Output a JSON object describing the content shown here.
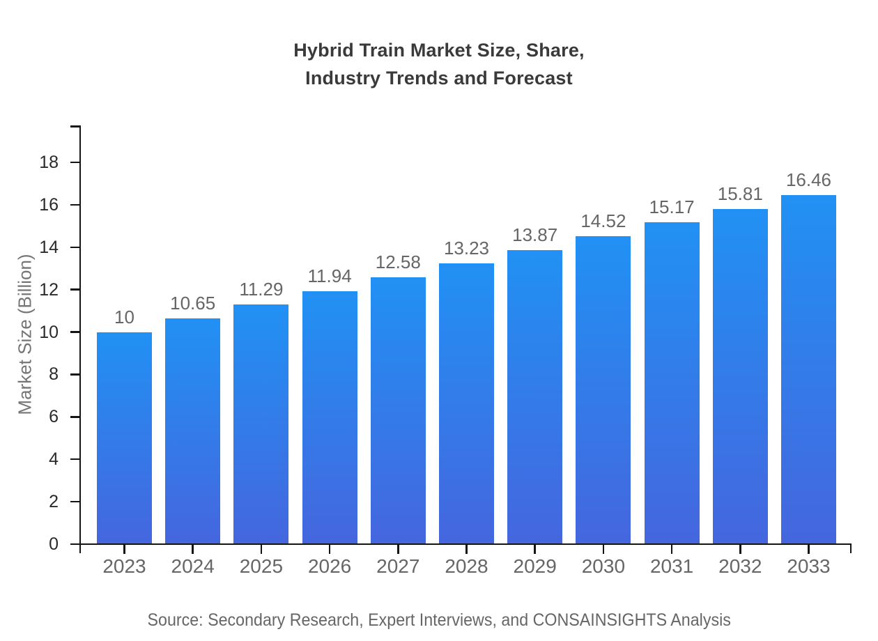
{
  "title": {
    "line1": "Hybrid Train Market Size, Share,",
    "line2": "Industry Trends and Forecast"
  },
  "footer": {
    "source": "Source: Secondary Research, Expert Interviews, and CONSAINSIGHTS Analysis"
  },
  "chart_data": {
    "type": "bar",
    "title": "Hybrid Train Market Size, Share, Industry Trends and Forecast",
    "categories": [
      "2023",
      "2024",
      "2025",
      "2026",
      "2027",
      "2028",
      "2029",
      "2030",
      "2031",
      "2032",
      "2033"
    ],
    "values": [
      10,
      10.65,
      11.29,
      11.94,
      12.58,
      13.23,
      13.87,
      14.52,
      15.17,
      15.81,
      16.46
    ],
    "value_labels": [
      "10",
      "10.65",
      "11.29",
      "11.94",
      "12.58",
      "13.23",
      "13.87",
      "14.52",
      "15.17",
      "15.81",
      "16.46"
    ],
    "xlabel": "",
    "ylabel": "Market Size (Billion)",
    "ylim": [
      0,
      19.7
    ],
    "yticks": [
      0,
      2,
      4,
      6,
      8,
      10,
      12,
      14,
      16,
      18
    ],
    "grid": false,
    "legend_position": "none",
    "colors": {
      "bar_gradient_top": "#2191f4",
      "bar_gradient_bottom": "#4566de",
      "axis_line": "#141414",
      "ytick_label": "#2a2a2a",
      "xtick_label": "#666666",
      "value_label": "#666666",
      "title": "#3a3a3a",
      "ylabel": "#757575",
      "source": "#666666"
    }
  }
}
